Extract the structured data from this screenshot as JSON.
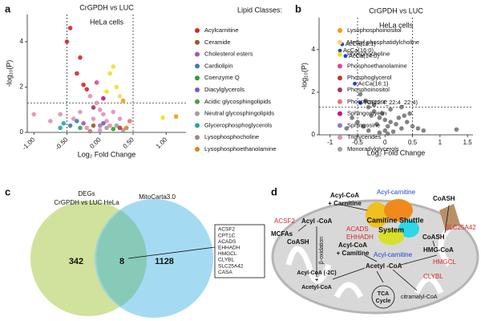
{
  "panel_labels": [
    "a",
    "b",
    "c",
    "d"
  ],
  "volcano_a": {
    "type": "scatter",
    "title": "CrGPDH vs LUC",
    "subtitle": "HeLa cells",
    "x_label": "Log₂ Fold Change",
    "y_label": "-log₁₀(P)",
    "xlim": [
      -1.1,
      1.3
    ],
    "ylim": [
      0,
      5.2
    ],
    "xticks": [
      {
        "value": -1,
        "label": "-1.00"
      },
      {
        "value": -0.5,
        "label": "-0.50"
      },
      {
        "value": 0,
        "label": "0.00"
      },
      {
        "value": 0.5,
        "label": "0.50"
      },
      {
        "value": 1,
        "label": "1.00"
      }
    ],
    "yticks": [
      0,
      2,
      4
    ],
    "cutoffs": {
      "x": [
        -0.5,
        0.5
      ],
      "y": 1.3
    },
    "legend_title": "Lipid Classes:",
    "classes": [
      {
        "name": "Acylcarnitine",
        "color": "#d62728"
      },
      {
        "name": "Ceramide",
        "color": "#a0522d"
      },
      {
        "name": "Cholesterol esters",
        "color": "#9b59b6"
      },
      {
        "name": "Cardiolipin",
        "color": "#3a7fb5"
      },
      {
        "name": "Coenzyme Q",
        "color": "#2ca02c"
      },
      {
        "name": "Diacylglycerols",
        "color": "#7e57c2"
      },
      {
        "name": "Acidic glycosphingolipids",
        "color": "#43a047"
      },
      {
        "name": "Neutral glycosphingolipids",
        "color": "#9e9e9e"
      },
      {
        "name": "Glycerophosphoglycerols",
        "color": "#26a69a"
      },
      {
        "name": "Lysophosphocholine",
        "color": "#a1887f"
      },
      {
        "name": "Lysophosphoethanolamine",
        "color": "#e67e22"
      },
      {
        "name": "Lysophosphoinositol",
        "color": "#f39c12"
      },
      {
        "name": "Methyl phosphatidylcholine",
        "color": "#f5d76e"
      },
      {
        "name": "Phosphocholine",
        "color": "#f1e21b"
      },
      {
        "name": "Phosphoethanolamine",
        "color": "#e84393"
      },
      {
        "name": "Phosphoglycerol",
        "color": "#c0392b"
      },
      {
        "name": "Phosphoinositol",
        "color": "#b03060"
      },
      {
        "name": "Phosphoserine",
        "color": "#e57373"
      },
      {
        "name": "Sphingomyelin",
        "color": "#c71585"
      },
      {
        "name": "Sphingosine",
        "color": "#8e7cc3"
      },
      {
        "name": "Triglycerides",
        "color": "#e091b4"
      },
      {
        "name": "Monoradylglycerols",
        "color": "#a0a0a0"
      }
    ],
    "points": {
      "x": [
        -0.45,
        -0.5,
        -0.3,
        -0.35,
        -0.25,
        -0.2,
        0.2,
        0.15,
        0.25,
        0.3,
        0.1,
        0.35,
        1.15,
        0.95,
        -0.15,
        -0.05,
        0,
        0.05,
        -0.1,
        0.1,
        -0.3,
        -0.4,
        -0.6,
        -0.75,
        -1.0,
        0.2,
        0.3,
        0.15,
        -0.2,
        0,
        -0.05,
        0.05,
        -0.1,
        -0.55,
        -0.45,
        -0.35,
        -0.6,
        0.1,
        0.25,
        0.35,
        -0.25,
        0.05,
        0.4,
        -0.15,
        0.2,
        -0.1,
        -0.3,
        0.45,
        0.3,
        0
      ],
      "y": [
        4.6,
        4.0,
        3.3,
        2.6,
        2.1,
        1.9,
        2.9,
        2.6,
        2.0,
        1.6,
        1.8,
        1.4,
        0.7,
        0.65,
        1.6,
        1.3,
        1.0,
        0.8,
        0.6,
        0.5,
        0.9,
        0.6,
        0.8,
        0.5,
        0.8,
        0.9,
        0.6,
        0.3,
        0.2,
        0.1,
        2.2,
        1.5,
        1.1,
        0.4,
        0.3,
        0.5,
        0.2,
        0.2,
        0.3,
        0.1,
        0.4,
        0.4,
        0.2,
        0.05,
        0.15,
        0.3,
        0.2,
        0.5,
        0.2,
        0.3
      ],
      "class": [
        0,
        0,
        0,
        0,
        0,
        0,
        13,
        13,
        13,
        12,
        13,
        11,
        11,
        13,
        20,
        20,
        20,
        20,
        20,
        20,
        20,
        20,
        20,
        20,
        20,
        20,
        20,
        20,
        20,
        20,
        14,
        18,
        16,
        8,
        3,
        3,
        8,
        7,
        21,
        7,
        2,
        5,
        10,
        9,
        4,
        1,
        6,
        17,
        15,
        19
      ]
    }
  },
  "volcano_b": {
    "type": "scatter",
    "title": "CrGPDH vs LUC",
    "subtitle": "HeLa cells",
    "x_label": "Log₂ Fold Change",
    "y_label": "-log₁₀(P)",
    "xlim": [
      -1.2,
      1.6
    ],
    "ylim": [
      0,
      5.5
    ],
    "xticks": [
      -1,
      -0.5,
      0,
      0.5,
      1,
      1.5
    ],
    "yticks": [
      0,
      2,
      4
    ],
    "cutoffs": {
      "x": [
        -0.5,
        0.5
      ],
      "y": 1.3
    },
    "color": "#777777",
    "highlight_color": "#1a3fd6",
    "points": {
      "x": [
        -0.45,
        -0.35,
        -0.3,
        -0.2,
        -0.25,
        -0.1,
        0,
        0.1,
        -0.15,
        0.05,
        0.2,
        0.3,
        -0.4,
        -0.5,
        -0.6,
        -0.3,
        0,
        0.15,
        0.25,
        0.35,
        0.4,
        0.5,
        0.6,
        0.45,
        -0.05,
        0.1,
        -0.2,
        0.7,
        1.3,
        -0.7,
        0.05,
        -0.1,
        0.3
      ],
      "y": [
        1.9,
        1.6,
        1.3,
        1.1,
        0.9,
        0.8,
        0.7,
        0.6,
        0.5,
        0.4,
        0.5,
        0.3,
        0.4,
        0.6,
        0.8,
        0.2,
        0.2,
        0.15,
        0.8,
        0.9,
        0.6,
        0.4,
        0.3,
        1.0,
        1.0,
        1.2,
        1.4,
        0.2,
        0.25,
        0.3,
        0.05,
        0.1,
        1.3
      ]
    },
    "highlighted": [
      {
        "label": "AcCa(18:1)",
        "x": -0.78,
        "y": 4.25
      },
      {
        "label": "AcCa(16:0)",
        "x": -0.82,
        "y": 3.95
      },
      {
        "label": "AcCa(14:0)",
        "x": -0.72,
        "y": 3.7
      },
      {
        "label": "AcCa(16:1)",
        "x": -0.55,
        "y": 2.4
      },
      {
        "label": "TG(22:4_22:4_22:4)",
        "x": -0.45,
        "y": 1.5
      }
    ]
  },
  "venn": {
    "left_label": [
      "DEGs",
      "CrGPDH vs LUC HeLa"
    ],
    "right_label": "MitoCarta3.0",
    "left_only": "342",
    "overlap": "8",
    "right_only": "1128",
    "genes": [
      {
        "name": "ACSF2",
        "color": "#d62728"
      },
      {
        "name": "CPT1C",
        "color": "#d62728"
      },
      {
        "name": "ACADS",
        "color": "#d62728"
      },
      {
        "name": "EHHADH",
        "color": "#d62728"
      },
      {
        "name": "HMGCL",
        "color": "#d62728"
      },
      {
        "name": "CLYBL",
        "color": "#d62728"
      },
      {
        "name": "SLC25A42",
        "color": "#d62728"
      },
      {
        "name": "CASA",
        "color": "#1a3fd6"
      }
    ]
  },
  "pathway": {
    "acyl_coa_carnitine_top": [
      "Acyl-CoA",
      "+ Carnitine"
    ],
    "acyl_carnitine_top": "Acyl-carnitine",
    "shuttle": [
      "Camitine Shuttle",
      "System"
    ],
    "acsf2": "ACSF2",
    "acyl_coa_left": "Acyl -CoA",
    "mcfas": "MCFAs",
    "coash_left": "CoASH",
    "beta_oxidation": "β-oxidation",
    "acads": "ACADS",
    "ehhadh": "EHHADH",
    "acyl_coa_camitine_mid": [
      "Acyl-CoA",
      "+ Camitine"
    ],
    "acyl_carnitine_mid": "Acyl-carnitine",
    "coash_top": "CoASH",
    "slc25a42": "SLC25A42",
    "coash_right": "CoASH",
    "hmg_coa": "HMG-CoA",
    "hmgcl": "HMGCL",
    "acetyl_coa": "Acetyl -CoA",
    "acyl_coa_2c": [
      "Acyl-CoA (-2C)",
      "+",
      "Acetyl-CoA"
    ],
    "clybl": "CLYBL",
    "citramalyl": "citramalyl-CoA",
    "tca": [
      "TCA",
      "Cycle"
    ]
  }
}
